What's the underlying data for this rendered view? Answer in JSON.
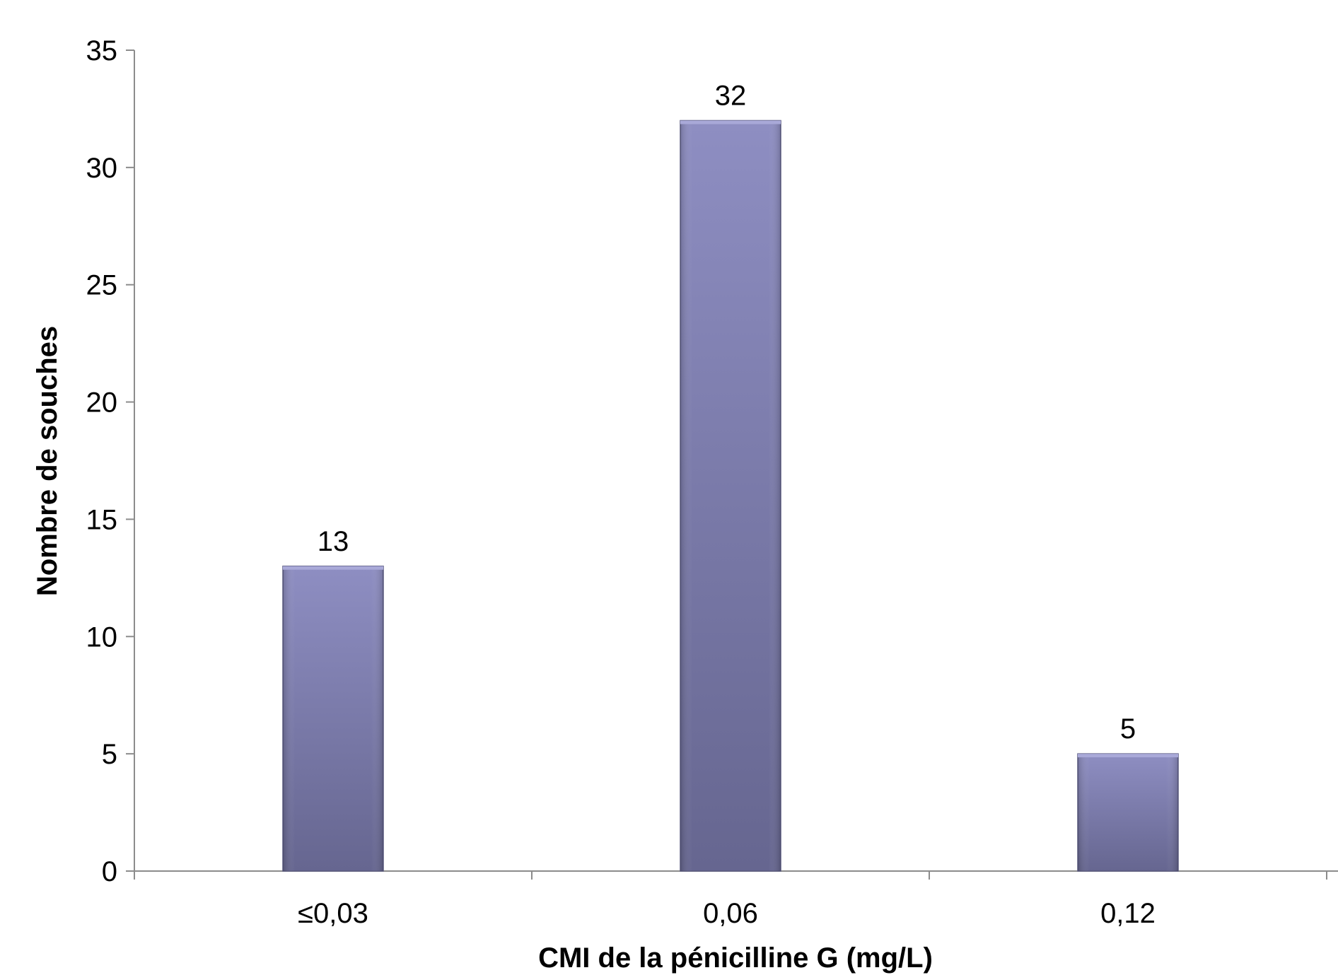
{
  "chart_data": {
    "type": "bar",
    "title": "",
    "xlabel": "CMI de la pénicilline G (mg/L)",
    "ylabel": "Nombre de souches",
    "categories": [
      "≤0,03",
      "0,06",
      "0,12"
    ],
    "values": [
      13,
      32,
      5
    ],
    "data_labels": [
      "13",
      "32",
      "5"
    ],
    "ylim": [
      0,
      35
    ],
    "yticks": [
      "0",
      "5",
      "10",
      "15",
      "20",
      "25",
      "30",
      "35"
    ],
    "grid": false,
    "legend": "none",
    "colors": {
      "bar_top": "#8e8ec2",
      "bar_bottom": "#666690",
      "bar_edge": "#5a5a80",
      "axis": "#8c8c8c"
    }
  }
}
